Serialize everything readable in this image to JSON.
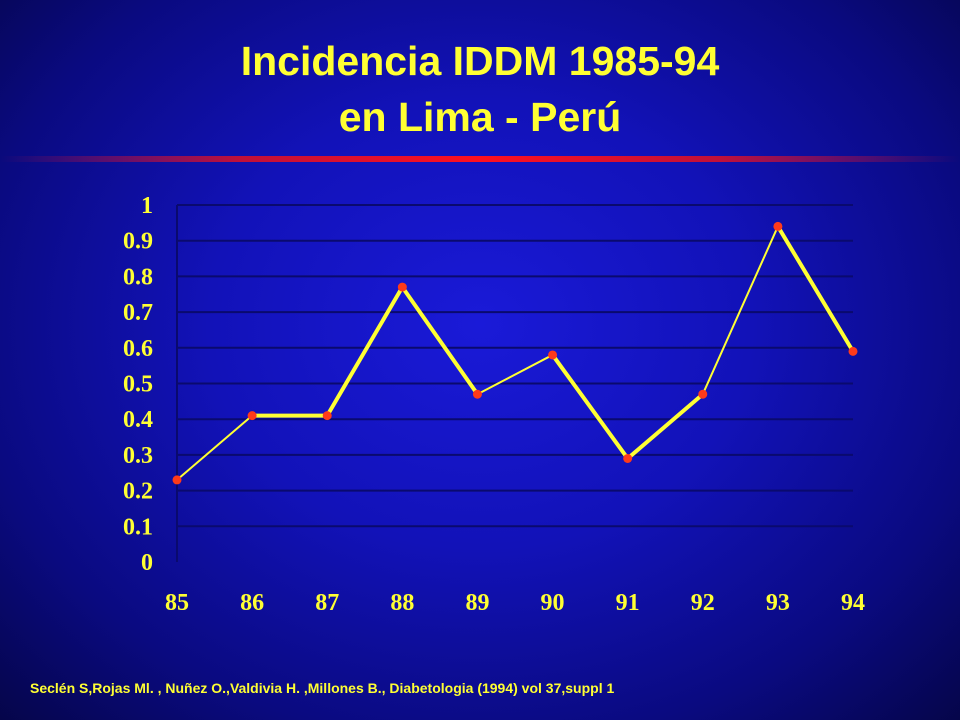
{
  "title": {
    "line1": "Incidencia  IDDM 1985-94",
    "line2": "en Lima - Perú"
  },
  "citation": "Seclén S,Rojas Ml. , Nuñez O.,Valdivia H. ,Millones B., Diabetologia (1994) vol 37,suppl 1",
  "colors": {
    "text": "#ffff33",
    "line": "#ffff33",
    "marker": "#ff3a1a",
    "gridline": "#0a0a6e"
  },
  "chart_data": {
    "type": "line",
    "title": "Incidencia  IDDM 1985-94 en Lima - Perú",
    "xlabel": "",
    "ylabel": "",
    "categories": [
      "85",
      "86",
      "87",
      "88",
      "89",
      "90",
      "91",
      "92",
      "93",
      "94"
    ],
    "values": [
      0.23,
      0.41,
      0.41,
      0.77,
      0.47,
      0.58,
      0.29,
      0.47,
      0.94,
      0.59
    ],
    "ylim": [
      0,
      1
    ],
    "yticks": [
      "0",
      "0.1",
      "0.2",
      "0.3",
      "0.4",
      "0.5",
      "0.6",
      "0.7",
      "0.8",
      "0.9",
      "1"
    ],
    "grid": true,
    "legend": "none"
  }
}
